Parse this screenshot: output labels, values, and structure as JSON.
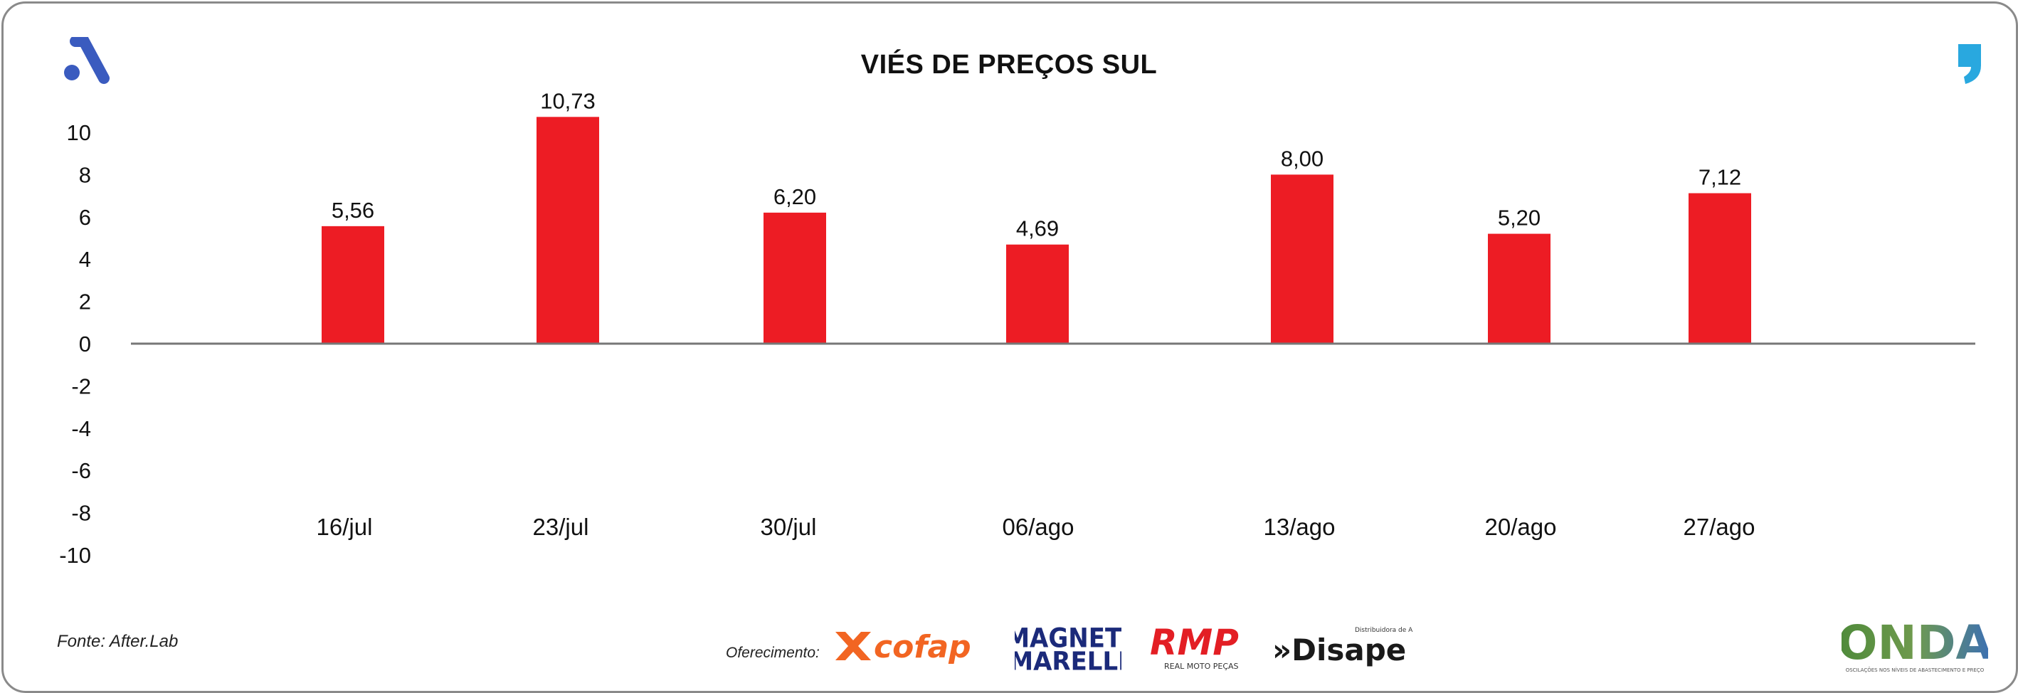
{
  "source": "Fonte: After.Lab",
  "sponsor_label": "Oferecimento:",
  "sponsors": {
    "cofap": "cofap",
    "magneti_top": "MAGNETI",
    "magneti_bottom": "MARELLI",
    "rmp": "RMP",
    "rmp_sub": "REAL MOTO PEÇAS",
    "disape": "»Disape",
    "disape_sub": "Distribuidora de Autopeças",
    "onda": "ONDA",
    "onda_sub": "OSCILAÇÕES NOS NÍVEIS DE ABASTECIMENTO E PREÇO"
  },
  "icons": [
    "brand-a-icon",
    "quote-icon"
  ],
  "colors": {
    "bar": "#ed1c24",
    "axis": "#777777",
    "brand_blue": "#3a5bbf",
    "quote_blue": "#29a8df"
  },
  "chart_data": {
    "type": "bar",
    "title": "VIÉS DE PREÇOS SUL",
    "categories": [
      "16/jul",
      "23/jul",
      "30/jul",
      "06/ago",
      "13/ago",
      "20/ago",
      "27/ago"
    ],
    "values": [
      5.56,
      10.73,
      6.2,
      4.69,
      8.0,
      5.2,
      7.12
    ],
    "value_labels": [
      "5,56",
      "10,73",
      "6,20",
      "4,69",
      "8,00",
      "5,20",
      "7,12"
    ],
    "yticks": [
      10,
      8,
      6,
      4,
      2,
      0,
      -2,
      -4,
      -6,
      -8,
      -10
    ],
    "ylim": [
      -10,
      10
    ],
    "xlabel": "",
    "ylabel": "",
    "grid": false,
    "legend": "none"
  }
}
